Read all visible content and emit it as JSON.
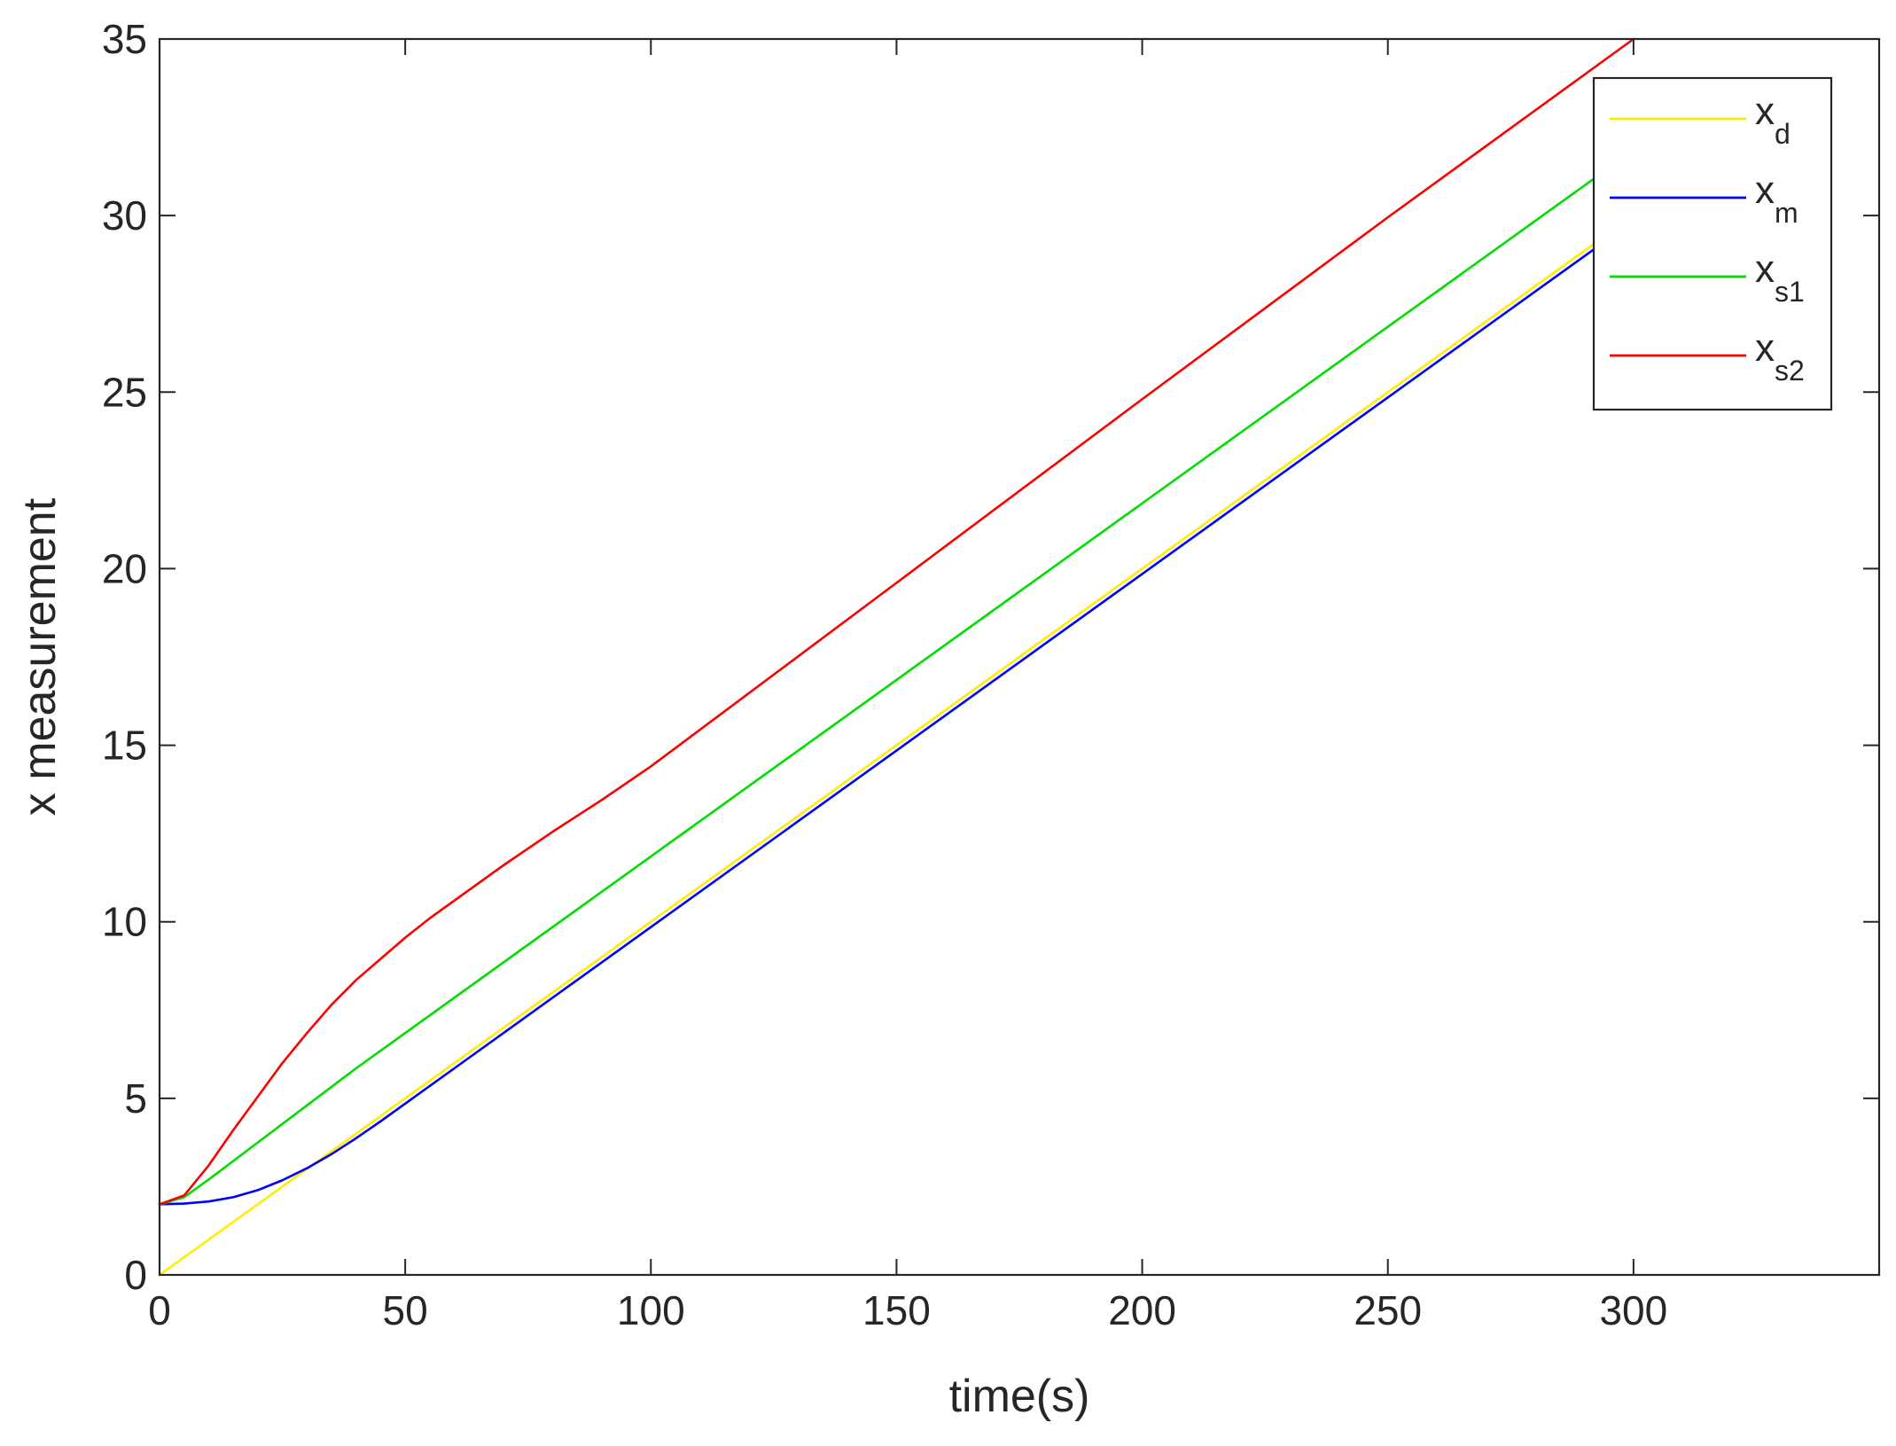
{
  "chart_data": {
    "type": "line",
    "title": "",
    "xlabel": "time(s)",
    "ylabel": "x measurement",
    "xlim": [
      0,
      350
    ],
    "ylim": [
      0,
      35
    ],
    "xticks": [
      0,
      50,
      100,
      150,
      200,
      250,
      300
    ],
    "yticks": [
      0,
      5,
      10,
      15,
      20,
      25,
      30,
      35
    ],
    "grid": false,
    "legend_position": "top-right",
    "series": [
      {
        "name": "x_d",
        "label_main": "x",
        "label_sub": "d",
        "color": "#ffee00",
        "x": [
          0,
          300
        ],
        "y": [
          0,
          30
        ]
      },
      {
        "name": "x_m",
        "label_main": "x",
        "label_sub": "m",
        "color": "#0000ff",
        "x": [
          0,
          5,
          10,
          15,
          20,
          25,
          30,
          35,
          40,
          45,
          50,
          60,
          70,
          80,
          90,
          100,
          150,
          200,
          250,
          300
        ],
        "y": [
          2,
          2.02,
          2.08,
          2.2,
          2.4,
          2.68,
          3.02,
          3.42,
          3.87,
          4.35,
          4.85,
          5.85,
          6.85,
          7.85,
          8.85,
          9.85,
          14.85,
          19.85,
          24.85,
          29.85
        ]
      },
      {
        "name": "x_s1",
        "label_main": "x",
        "label_sub": "s1",
        "color": "#00dd00",
        "x": [
          0,
          5,
          10,
          20,
          30,
          40,
          50,
          100,
          150,
          200,
          250,
          300
        ],
        "y": [
          2,
          2.2,
          2.7,
          3.75,
          4.8,
          5.85,
          6.85,
          11.85,
          16.85,
          21.85,
          26.85,
          31.85
        ]
      },
      {
        "name": "x_s2",
        "label_main": "x",
        "label_sub": "s2",
        "color": "#ff0000",
        "x": [
          0,
          5,
          10,
          15,
          20,
          25,
          30,
          35,
          40,
          45,
          50,
          55,
          60,
          70,
          80,
          90,
          100,
          150,
          200,
          250,
          300
        ],
        "y": [
          2,
          2.25,
          3.1,
          4.1,
          5.05,
          6.0,
          6.85,
          7.65,
          8.35,
          8.95,
          9.55,
          10.1,
          10.6,
          11.6,
          12.55,
          13.45,
          14.4,
          19.6,
          24.8,
          29.95,
          35.0
        ]
      }
    ]
  }
}
